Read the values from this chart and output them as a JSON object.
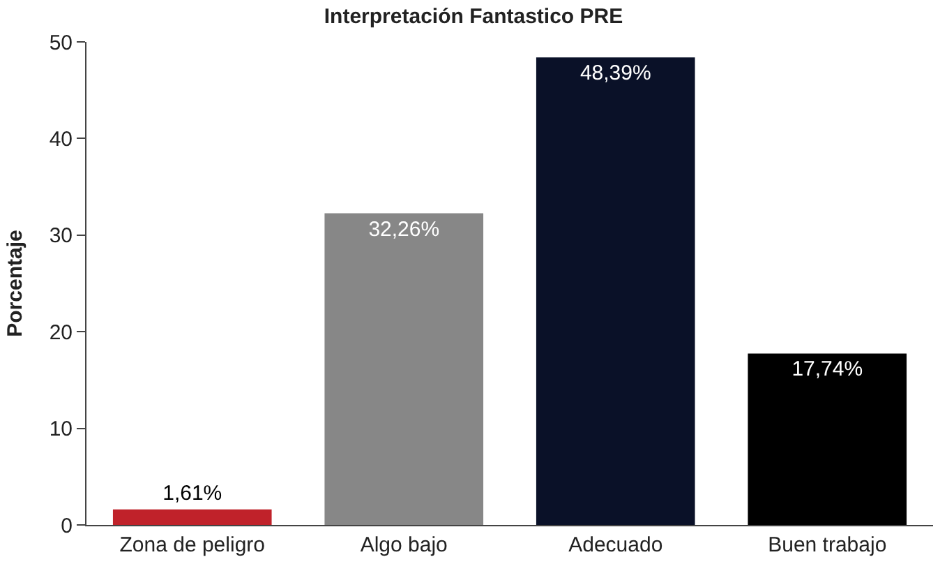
{
  "chart_data": {
    "type": "bar",
    "title": "Interpretación Fantastico PRE",
    "ylabel": "Porcentaje",
    "categories": [
      "Zona de peligro",
      "Algo bajo",
      "Adecuado",
      "Buen trabajo"
    ],
    "values": [
      1.61,
      32.26,
      48.39,
      17.74
    ],
    "value_labels": [
      "1,61%",
      "32,26%",
      "48,39%",
      "17,74%"
    ],
    "colors": [
      "#c0222a",
      "#878787",
      "#0a1128",
      "#000000"
    ],
    "ylim": [
      0,
      50
    ],
    "yticks": [
      0,
      10,
      20,
      30,
      40,
      50
    ]
  }
}
